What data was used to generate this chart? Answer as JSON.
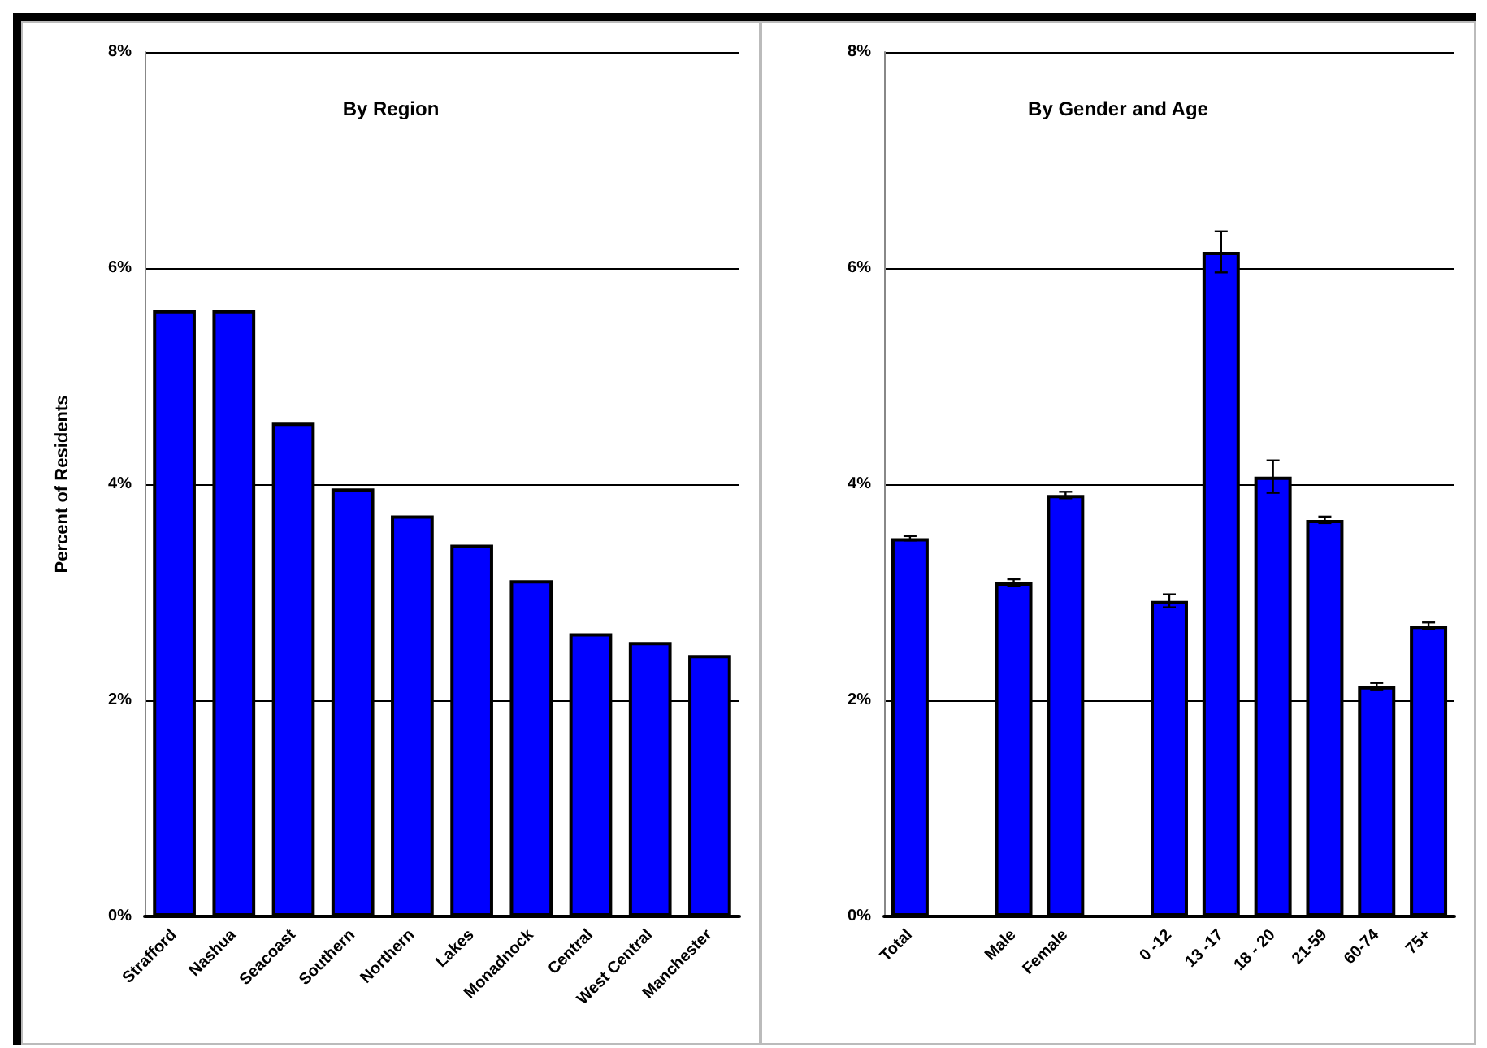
{
  "chart_data": [
    {
      "type": "bar",
      "title": "By Region",
      "ylabel": "Percent of Residents",
      "categories": [
        "Strafford",
        "Nashua",
        "Seacoast",
        "Southern",
        "Northern",
        "Lakes",
        "Monadnock",
        "Central",
        "West Central",
        "Manchester"
      ],
      "values": [
        5.61,
        5.61,
        4.57,
        3.96,
        3.71,
        3.44,
        3.11,
        2.62,
        2.54,
        2.42
      ],
      "color": "#0000ff",
      "ylim": [
        0,
        8
      ],
      "yticks": [
        {
          "value": 0,
          "label": "0%"
        },
        {
          "value": 2,
          "label": "2%"
        },
        {
          "value": 4,
          "label": "4%"
        },
        {
          "value": 6,
          "label": "6%"
        },
        {
          "value": 8,
          "label": "8%"
        }
      ],
      "grid": "y"
    },
    {
      "type": "bar",
      "title": "By Gender and Age",
      "categories": [
        "Total",
        null,
        "Male",
        "Female",
        null,
        "0 -12",
        "13 -17",
        "18 - 20",
        "21-59",
        "60-74",
        "75+"
      ],
      "values": [
        3.5,
        null,
        3.09,
        3.9,
        null,
        2.92,
        6.15,
        4.07,
        3.67,
        2.13,
        2.69
      ],
      "errors": [
        0.02,
        null,
        0.03,
        0.03,
        null,
        0.06,
        0.19,
        0.15,
        0.03,
        0.03,
        0.03
      ],
      "color": "#0000ff",
      "ylim": [
        0,
        8
      ],
      "yticks": [
        {
          "value": 0,
          "label": "0%"
        },
        {
          "value": 2,
          "label": "2%"
        },
        {
          "value": 4,
          "label": "4%"
        },
        {
          "value": 6,
          "label": "6%"
        },
        {
          "value": 8,
          "label": "8%"
        }
      ],
      "grid": "y"
    }
  ]
}
